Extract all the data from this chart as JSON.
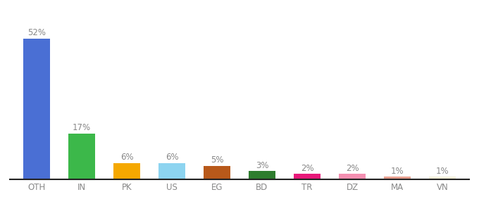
{
  "categories": [
    "OTH",
    "IN",
    "PK",
    "US",
    "EG",
    "BD",
    "TR",
    "DZ",
    "MA",
    "VN"
  ],
  "values": [
    52,
    17,
    6,
    6,
    5,
    3,
    2,
    2,
    1,
    1
  ],
  "bar_colors": [
    "#4A6FD4",
    "#3CB84A",
    "#F5A800",
    "#8DD4F0",
    "#B8591A",
    "#2E7D2E",
    "#E8197A",
    "#F48FB1",
    "#E8A090",
    "#F5F0DC"
  ],
  "labels": [
    "52%",
    "17%",
    "6%",
    "6%",
    "5%",
    "3%",
    "2%",
    "2%",
    "1%",
    "1%"
  ],
  "label_color": "#888888",
  "background_color": "#ffffff",
  "ylim": [
    0,
    60
  ],
  "label_fontsize": 8.5,
  "tick_fontsize": 8.5
}
